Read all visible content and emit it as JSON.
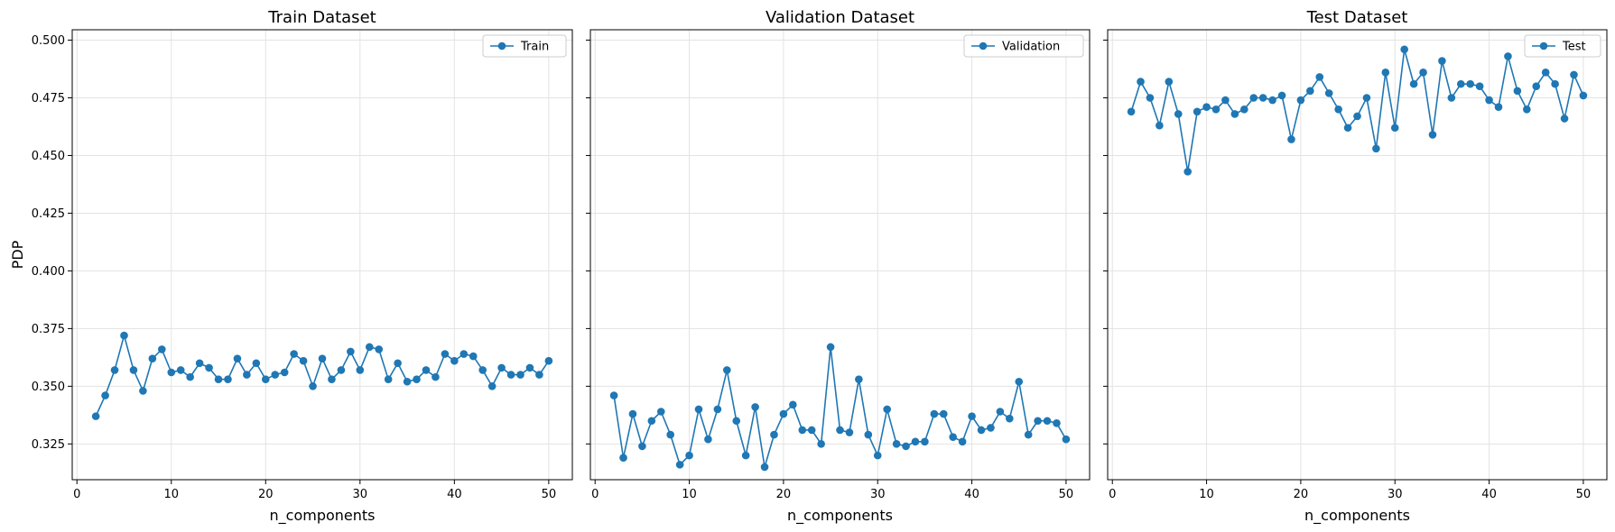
{
  "colors": {
    "series": "#1f77b4",
    "grid": "#e3e3e3",
    "axis": "#000000"
  },
  "chart_data": [
    {
      "type": "line",
      "title": "Train Dataset",
      "xlabel": "n_components",
      "ylabel": "PDP",
      "xlim": [
        -0.5,
        52.5
      ],
      "ylim": [
        0.3095,
        0.5045
      ],
      "xticks": [
        0,
        10,
        20,
        30,
        40,
        50
      ],
      "yticks": [
        0.325,
        0.35,
        0.375,
        0.4,
        0.425,
        0.45,
        0.475,
        0.5
      ],
      "ytick_labels": [
        "0.325",
        "0.350",
        "0.375",
        "0.400",
        "0.425",
        "0.450",
        "0.475",
        "0.500"
      ],
      "grid": true,
      "legend": "top-right",
      "series": [
        {
          "name": "Train",
          "x": [
            2,
            3,
            4,
            5,
            6,
            7,
            8,
            9,
            10,
            11,
            12,
            13,
            14,
            15,
            16,
            17,
            18,
            19,
            20,
            21,
            22,
            23,
            24,
            25,
            26,
            27,
            28,
            29,
            30,
            31,
            32,
            33,
            34,
            35,
            36,
            37,
            38,
            39,
            40,
            41,
            42,
            43,
            44,
            45,
            46,
            47,
            48,
            49,
            50
          ],
          "y": [
            0.337,
            0.346,
            0.357,
            0.372,
            0.357,
            0.348,
            0.362,
            0.366,
            0.356,
            0.357,
            0.354,
            0.36,
            0.358,
            0.353,
            0.353,
            0.362,
            0.355,
            0.36,
            0.353,
            0.355,
            0.356,
            0.364,
            0.361,
            0.35,
            0.362,
            0.353,
            0.357,
            0.365,
            0.357,
            0.367,
            0.366,
            0.353,
            0.36,
            0.352,
            0.353,
            0.357,
            0.354,
            0.364,
            0.361,
            0.364,
            0.363,
            0.357,
            0.35,
            0.358,
            0.355,
            0.355,
            0.358,
            0.355,
            0.361
          ]
        }
      ]
    },
    {
      "type": "line",
      "title": "Validation Dataset",
      "xlabel": "n_components",
      "ylabel": "",
      "xlim": [
        -0.5,
        52.5
      ],
      "ylim": [
        0.3095,
        0.5045
      ],
      "xticks": [
        0,
        10,
        20,
        30,
        40,
        50
      ],
      "yticks": [
        0.325,
        0.35,
        0.375,
        0.4,
        0.425,
        0.45,
        0.475,
        0.5
      ],
      "grid": true,
      "legend": "top-right",
      "series": [
        {
          "name": "Validation",
          "x": [
            2,
            3,
            4,
            5,
            6,
            7,
            8,
            9,
            10,
            11,
            12,
            13,
            14,
            15,
            16,
            17,
            18,
            19,
            20,
            21,
            22,
            23,
            24,
            25,
            26,
            27,
            28,
            29,
            30,
            31,
            32,
            33,
            34,
            35,
            36,
            37,
            38,
            39,
            40,
            41,
            42,
            43,
            44,
            45,
            46,
            47,
            48,
            49,
            50
          ],
          "y": [
            0.346,
            0.319,
            0.338,
            0.324,
            0.335,
            0.339,
            0.329,
            0.316,
            0.32,
            0.34,
            0.327,
            0.34,
            0.357,
            0.335,
            0.32,
            0.341,
            0.315,
            0.329,
            0.338,
            0.342,
            0.331,
            0.331,
            0.325,
            0.367,
            0.331,
            0.33,
            0.353,
            0.329,
            0.32,
            0.34,
            0.325,
            0.324,
            0.326,
            0.326,
            0.338,
            0.338,
            0.328,
            0.326,
            0.337,
            0.331,
            0.332,
            0.339,
            0.336,
            0.352,
            0.329,
            0.335,
            0.335,
            0.334,
            0.327
          ]
        }
      ]
    },
    {
      "type": "line",
      "title": "Test Dataset",
      "xlabel": "n_components",
      "ylabel": "",
      "xlim": [
        -0.5,
        52.5
      ],
      "ylim": [
        0.3095,
        0.5045
      ],
      "xticks": [
        0,
        10,
        20,
        30,
        40,
        50
      ],
      "yticks": [
        0.325,
        0.35,
        0.375,
        0.4,
        0.425,
        0.45,
        0.475,
        0.5
      ],
      "grid": true,
      "legend": "top-right",
      "series": [
        {
          "name": "Test",
          "x": [
            2,
            3,
            4,
            5,
            6,
            7,
            8,
            9,
            10,
            11,
            12,
            13,
            14,
            15,
            16,
            17,
            18,
            19,
            20,
            21,
            22,
            23,
            24,
            25,
            26,
            27,
            28,
            29,
            30,
            31,
            32,
            33,
            34,
            35,
            36,
            37,
            38,
            39,
            40,
            41,
            42,
            43,
            44,
            45,
            46,
            47,
            48,
            49,
            50
          ],
          "y": [
            0.469,
            0.482,
            0.475,
            0.463,
            0.482,
            0.468,
            0.443,
            0.469,
            0.471,
            0.47,
            0.474,
            0.468,
            0.47,
            0.475,
            0.475,
            0.474,
            0.476,
            0.457,
            0.474,
            0.478,
            0.484,
            0.477,
            0.47,
            0.462,
            0.467,
            0.475,
            0.453,
            0.486,
            0.462,
            0.496,
            0.481,
            0.486,
            0.459,
            0.491,
            0.475,
            0.481,
            0.481,
            0.48,
            0.474,
            0.471,
            0.493,
            0.478,
            0.47,
            0.48,
            0.486,
            0.481,
            0.466,
            0.485,
            0.476
          ]
        }
      ]
    }
  ]
}
